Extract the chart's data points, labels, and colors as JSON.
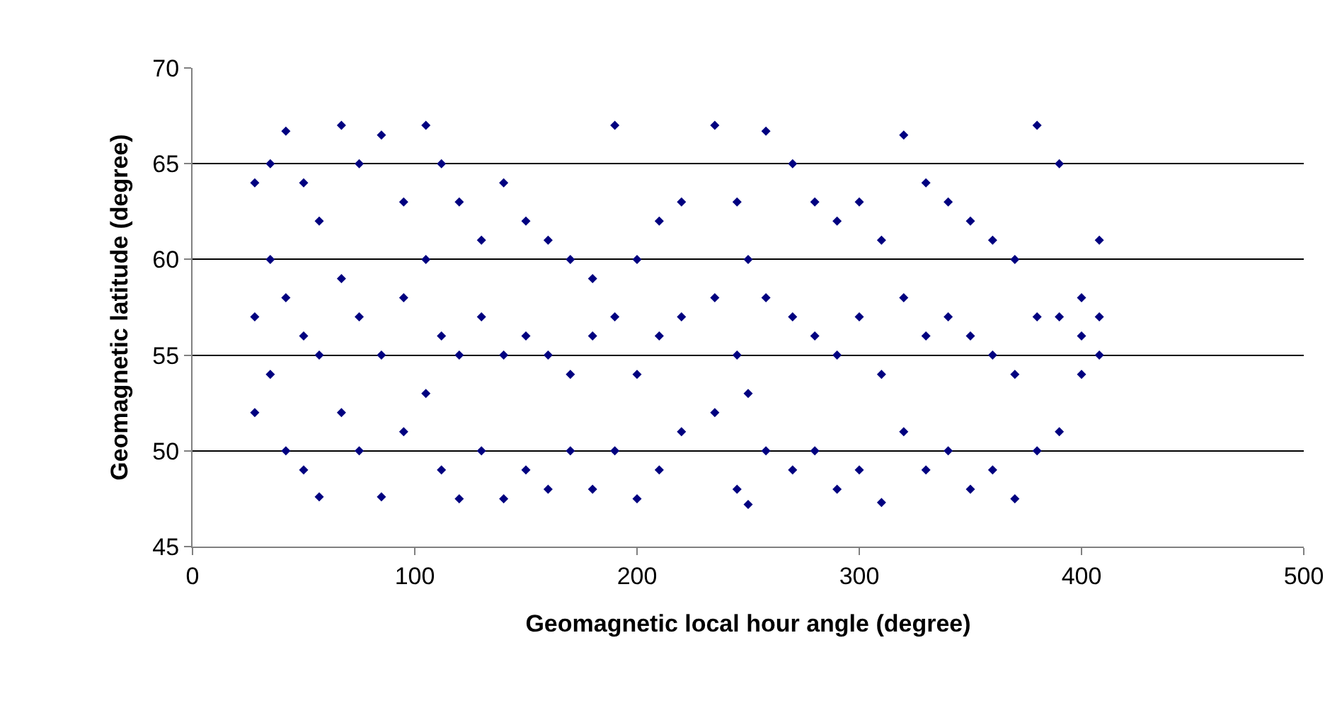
{
  "chart_data": {
    "type": "scatter",
    "xlabel": "Geomagnetic local hour angle (degree)",
    "ylabel": "Geomagnetic latitude (degree)",
    "xlim": [
      0,
      500
    ],
    "xticks": [
      0,
      100,
      200,
      300,
      400,
      500
    ],
    "ylim": [
      45,
      70
    ],
    "yticks": [
      45,
      50,
      55,
      60,
      65,
      70
    ],
    "grid": "y",
    "marker": "diamond",
    "series": [
      {
        "color": "#000080",
        "x": [
          28,
          28,
          28,
          35,
          35,
          35,
          42,
          42,
          42,
          50,
          50,
          50,
          57,
          57,
          57,
          67,
          67,
          67,
          75,
          75,
          75,
          85,
          85,
          85,
          95,
          95,
          95,
          105,
          105,
          105,
          112,
          112,
          112,
          120,
          120,
          120,
          130,
          130,
          130,
          140,
          140,
          140,
          150,
          150,
          150,
          160,
          160,
          160,
          170,
          170,
          170,
          180,
          180,
          180,
          190,
          190,
          190,
          200,
          200,
          200,
          210,
          210,
          210,
          220,
          220,
          220,
          235,
          235,
          235,
          245,
          245,
          245,
          250,
          250,
          250,
          258,
          258,
          258,
          270,
          270,
          270,
          280,
          280,
          280,
          290,
          290,
          290,
          300,
          300,
          300,
          310,
          310,
          310,
          320,
          320,
          320,
          330,
          330,
          330,
          340,
          340,
          340,
          350,
          350,
          350,
          360,
          360,
          360,
          370,
          370,
          370,
          380,
          380,
          380,
          390,
          390,
          390,
          400,
          400,
          400,
          408,
          408,
          408
        ],
        "values": [
          64,
          57,
          52,
          65,
          60,
          54,
          66.7,
          58,
          50,
          64,
          56,
          49,
          62,
          55,
          47.6,
          67,
          59,
          52,
          65,
          57,
          50,
          66.5,
          55,
          47.6,
          63,
          58,
          51,
          67,
          60,
          53,
          65,
          56,
          49,
          63,
          55,
          47.5,
          61,
          57,
          50,
          64,
          55,
          47.5,
          62,
          56,
          49,
          61,
          55,
          48,
          60,
          54,
          50,
          59,
          56,
          48,
          67,
          57,
          50,
          60,
          54,
          47.5,
          62,
          56,
          49,
          63,
          57,
          51,
          67,
          58,
          52,
          63,
          55,
          48,
          60,
          53,
          47.2,
          66.7,
          58,
          50,
          65,
          57,
          49,
          63,
          56,
          50,
          62,
          55,
          48,
          63,
          57,
          49,
          61,
          54,
          47.3,
          66.5,
          58,
          51,
          64,
          56,
          49,
          63,
          57,
          50,
          62,
          56,
          48,
          61,
          55,
          49,
          60,
          54,
          47.5,
          67,
          57,
          50,
          65,
          57,
          51,
          58,
          56,
          54,
          61,
          57,
          55
        ]
      }
    ]
  }
}
